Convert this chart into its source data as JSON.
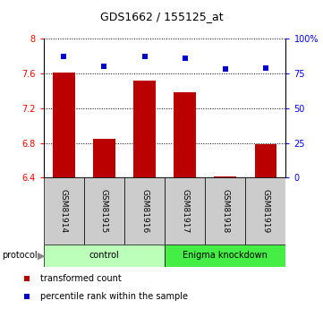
{
  "title": "GDS1662 / 155125_at",
  "samples": [
    "GSM81914",
    "GSM81915",
    "GSM81916",
    "GSM81917",
    "GSM81918",
    "GSM81919"
  ],
  "bar_values": [
    7.61,
    6.85,
    7.52,
    7.38,
    6.41,
    6.79
  ],
  "bar_base": 6.4,
  "dot_values": [
    87,
    80,
    87,
    86,
    78,
    79
  ],
  "left_ylim": [
    6.4,
    8.0
  ],
  "right_ylim": [
    0,
    100
  ],
  "left_yticks": [
    6.4,
    6.8,
    7.2,
    7.6,
    8.0
  ],
  "left_yticklabels": [
    "6.4",
    "6.8",
    "7.2",
    "7.6",
    "8"
  ],
  "right_yticks": [
    0,
    25,
    50,
    75,
    100
  ],
  "right_yticklabels": [
    "0",
    "25",
    "50",
    "75",
    "100%"
  ],
  "bar_color": "#bb0000",
  "dot_color": "#0000cc",
  "hgrid_vals": [
    6.8,
    7.2,
    7.6
  ],
  "top_hline": 8.0,
  "control_color": "#bbffbb",
  "enigma_color": "#44ee44",
  "sample_box_color": "#cccccc",
  "fig_bg": "#ffffff"
}
